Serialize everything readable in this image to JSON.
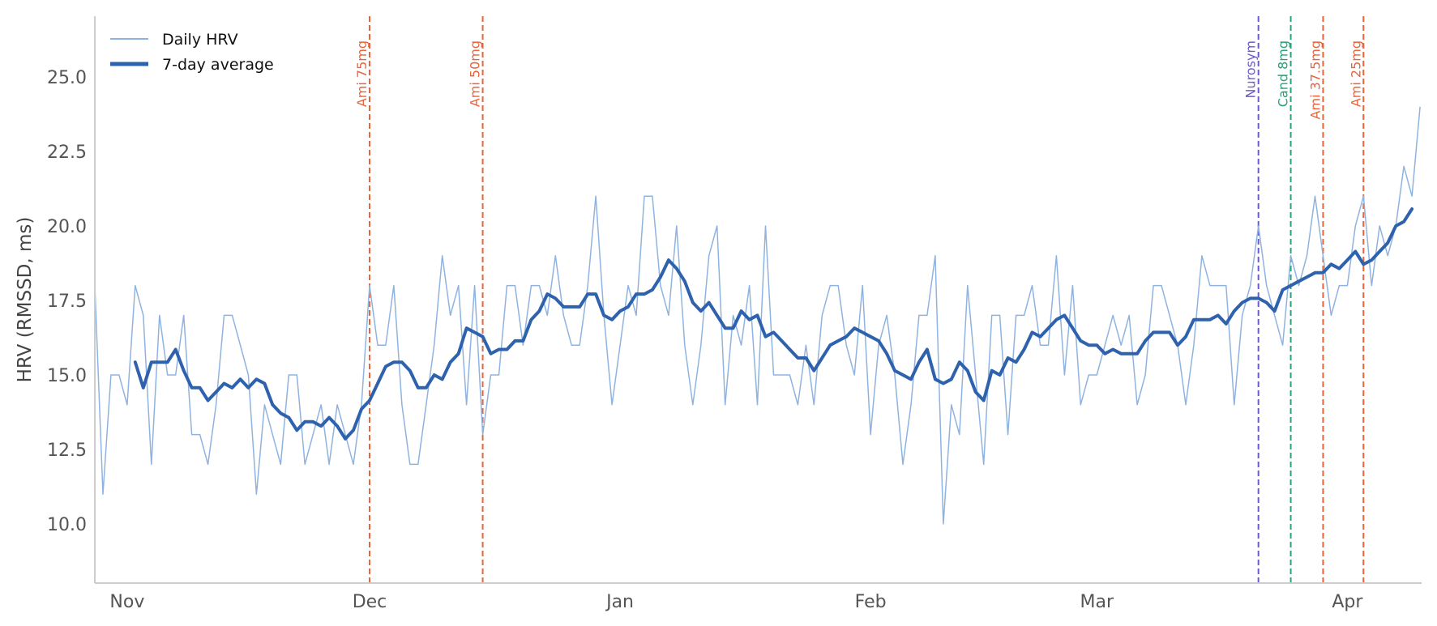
{
  "chart_data": {
    "type": "line",
    "title": "",
    "xlabel": "",
    "ylabel": "HRV (RMSSD, ms)",
    "ylim": [
      8.0,
      27.0
    ],
    "yticks": [
      "10.0",
      "12.5",
      "15.0",
      "17.5",
      "20.0",
      "22.5",
      "25.0"
    ],
    "xticks": [
      "Nov",
      "Dec",
      "Jan",
      "Feb",
      "Mar",
      "Apr"
    ],
    "grid": false,
    "legend_position": "upper left",
    "x_start": "Oct 28",
    "x_end": "Apr 9",
    "series": [
      {
        "name": "Daily HRV",
        "color": "#8fb3e0",
        "linewidth": 1.5,
        "values": [
          18,
          11,
          15,
          15,
          14,
          18,
          17,
          12,
          17,
          15,
          15,
          17,
          13,
          13,
          12,
          14,
          17,
          17,
          16,
          15,
          11,
          14,
          13,
          12,
          15,
          15,
          12,
          13,
          14,
          12,
          14,
          13,
          12,
          14,
          18,
          16,
          16,
          18,
          14,
          12,
          12,
          14,
          16,
          19,
          17,
          18,
          14,
          18,
          13,
          15,
          15,
          18,
          18,
          16,
          18,
          18,
          17,
          19,
          17,
          16,
          16,
          18,
          21,
          17,
          14,
          16,
          18,
          17,
          21,
          21,
          18,
          17,
          20,
          16,
          14,
          16,
          19,
          20,
          14,
          17,
          16,
          18,
          14,
          20,
          15,
          15,
          15,
          14,
          16,
          14,
          17,
          18,
          18,
          16,
          15,
          18,
          13,
          16,
          17,
          15,
          12,
          14,
          17,
          17,
          19,
          10,
          14,
          13,
          18,
          15,
          12,
          17,
          17,
          13,
          17,
          17,
          18,
          16,
          16,
          19,
          15,
          18,
          14,
          15,
          15,
          16,
          17,
          16,
          17,
          14,
          15,
          18,
          18,
          17,
          16,
          14,
          16,
          19,
          18,
          18,
          18,
          14,
          17,
          18,
          20,
          18,
          17,
          16,
          19,
          18,
          19,
          21,
          19,
          17,
          18,
          18,
          20,
          21,
          18,
          20,
          19,
          20,
          22,
          21,
          24
        ]
      },
      {
        "name": "7-day average",
        "color": "#2f62ad",
        "linewidth": 4,
        "window": 7
      }
    ],
    "events": [
      {
        "label": "Ami 75mg",
        "date": "Dec 1",
        "day_index": 34,
        "color": "#e8643c"
      },
      {
        "label": "Ami 50mg",
        "date": "Dec 15",
        "day_index": 48,
        "color": "#e8643c"
      },
      {
        "label": "Nurosym",
        "date": "Mar 21",
        "day_index": 144,
        "color": "#6a5acd"
      },
      {
        "label": "Cand 8mg",
        "date": "Mar 25",
        "day_index": 148,
        "color": "#2aa37a"
      },
      {
        "label": "Ami 37.5mg",
        "date": "Mar 29",
        "day_index": 152,
        "color": "#e8643c"
      },
      {
        "label": "Ami 25mg",
        "date": "Apr 3",
        "day_index": 157,
        "color": "#e8643c"
      }
    ],
    "xtick_day_index": {
      "Nov": 4,
      "Dec": 34,
      "Jan": 65,
      "Feb": 96,
      "Mar": 124,
      "Apr": 155
    }
  },
  "legend": {
    "items": [
      {
        "label": "Daily HRV"
      },
      {
        "label": "7-day average"
      }
    ]
  }
}
